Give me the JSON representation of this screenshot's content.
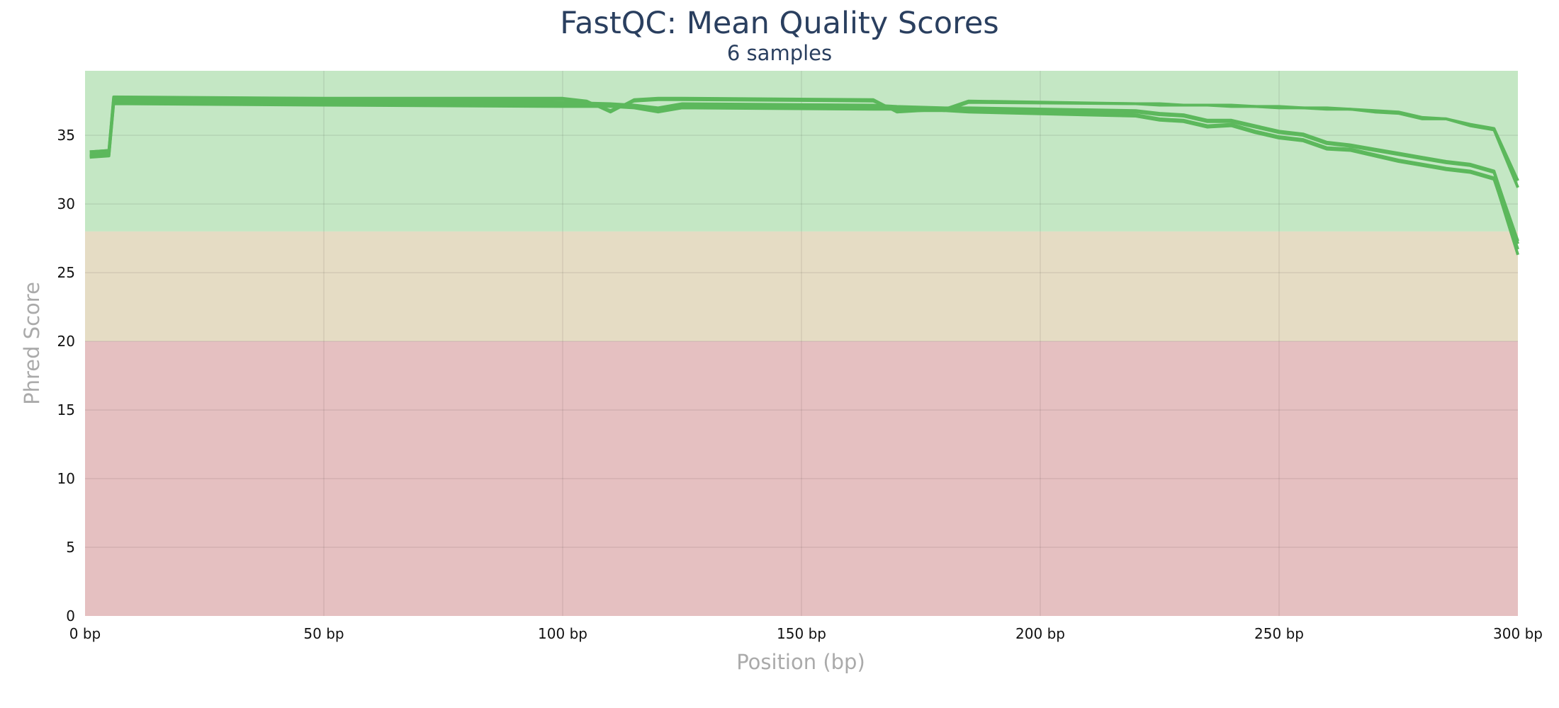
{
  "chart_data": {
    "type": "line",
    "title": "FastQC: Mean Quality Scores",
    "subtitle": "6 samples",
    "xlabel": "Position (bp)",
    "ylabel": "Phred Score",
    "xlim": [
      0,
      300
    ],
    "ylim": [
      0,
      39.7
    ],
    "x_ticks": [
      0,
      50,
      100,
      150,
      200,
      250,
      300
    ],
    "x_tick_labels": [
      "0 bp",
      "50 bp",
      "100 bp",
      "150 bp",
      "200 bp",
      "250 bp",
      "300 bp"
    ],
    "y_ticks": [
      0,
      5,
      10,
      15,
      20,
      25,
      30,
      35
    ],
    "y_tick_labels": [
      "0",
      "5",
      "10",
      "15",
      "20",
      "25",
      "30",
      "35"
    ],
    "grid": true,
    "legend": "none",
    "bands": [
      {
        "from": 28,
        "to": 39.7,
        "color": "#c4e7c4"
      },
      {
        "from": 20,
        "to": 28,
        "color": "#e5dcc4"
      },
      {
        "from": 0,
        "to": 20,
        "color": "#e5c0c1"
      }
    ],
    "line_color": "#5cb85c",
    "series": [
      {
        "x": [
          1,
          5,
          6,
          50,
          100,
          105,
          110,
          115,
          120,
          125,
          165,
          170,
          180,
          185,
          220,
          225,
          230,
          235,
          240,
          245,
          250,
          255,
          260,
          265,
          270,
          275,
          280,
          285,
          290,
          295,
          300
        ],
        "values": [
          33.8,
          33.9,
          37.8,
          37.7,
          37.7,
          37.5,
          36.7,
          37.6,
          37.7,
          37.7,
          37.6,
          36.7,
          36.9,
          37.5,
          37.3,
          37.3,
          37.2,
          37.2,
          37.2,
          37.1,
          37.1,
          37.0,
          37.0,
          36.9,
          36.8,
          36.7,
          36.3,
          36.2,
          35.8,
          35.5,
          31.7
        ]
      },
      {
        "x": [
          1,
          5,
          6,
          50,
          100,
          105,
          110,
          115,
          120,
          125,
          165,
          170,
          180,
          185,
          220,
          225,
          230,
          235,
          240,
          245,
          250,
          255,
          260,
          265,
          270,
          275,
          280,
          285,
          290,
          295,
          300
        ],
        "values": [
          33.8,
          33.9,
          37.7,
          37.6,
          37.6,
          37.4,
          36.8,
          37.5,
          37.6,
          37.6,
          37.5,
          36.8,
          36.8,
          37.4,
          37.3,
          37.2,
          37.2,
          37.2,
          37.1,
          37.1,
          37.0,
          37.0,
          36.9,
          36.9,
          36.7,
          36.6,
          36.2,
          36.2,
          35.7,
          35.4,
          31.2
        ]
      },
      {
        "x": [
          1,
          5,
          6,
          50,
          100,
          110,
          115,
          120,
          125,
          165,
          170,
          175,
          180,
          185,
          220,
          225,
          230,
          235,
          240,
          245,
          250,
          255,
          260,
          265,
          270,
          275,
          280,
          285,
          290,
          295,
          300
        ],
        "values": [
          33.5,
          33.6,
          37.4,
          37.3,
          37.2,
          37.2,
          37.1,
          36.8,
          37.1,
          37.0,
          37.0,
          37.0,
          36.9,
          36.8,
          36.5,
          36.2,
          36.1,
          35.7,
          35.8,
          35.3,
          34.9,
          34.7,
          34.1,
          34.0,
          33.6,
          33.2,
          32.9,
          32.6,
          32.4,
          31.9,
          26.3
        ]
      },
      {
        "x": [
          1,
          5,
          6,
          50,
          100,
          110,
          115,
          120,
          125,
          165,
          170,
          175,
          180,
          185,
          220,
          225,
          230,
          235,
          240,
          245,
          250,
          255,
          260,
          265,
          270,
          275,
          280,
          285,
          290,
          295,
          300
        ],
        "values": [
          33.4,
          33.5,
          37.3,
          37.2,
          37.1,
          37.1,
          37.0,
          36.7,
          37.0,
          36.9,
          36.9,
          36.9,
          36.8,
          36.7,
          36.4,
          36.1,
          36.0,
          35.6,
          35.7,
          35.2,
          34.8,
          34.6,
          34.0,
          33.9,
          33.5,
          33.1,
          32.8,
          32.5,
          32.3,
          31.8,
          26.7
        ]
      },
      {
        "x": [
          1,
          5,
          6,
          50,
          100,
          110,
          115,
          120,
          125,
          165,
          170,
          180,
          185,
          220,
          225,
          230,
          235,
          240,
          245,
          250,
          255,
          260,
          265,
          270,
          275,
          280,
          285,
          290,
          295,
          300
        ],
        "values": [
          33.6,
          33.7,
          37.6,
          37.5,
          37.4,
          37.3,
          37.2,
          37.0,
          37.3,
          37.2,
          37.1,
          37.0,
          37.0,
          36.8,
          36.6,
          36.5,
          36.1,
          36.1,
          35.7,
          35.3,
          35.1,
          34.5,
          34.3,
          34.0,
          33.7,
          33.4,
          33.1,
          32.9,
          32.4,
          27.1
        ]
      },
      {
        "x": [
          1,
          5,
          6,
          50,
          100,
          110,
          115,
          120,
          125,
          165,
          170,
          180,
          185,
          220,
          225,
          230,
          235,
          240,
          245,
          250,
          255,
          260,
          265,
          270,
          275,
          280,
          285,
          290,
          295,
          300
        ],
        "values": [
          33.5,
          33.6,
          37.5,
          37.4,
          37.3,
          37.2,
          37.1,
          36.9,
          37.2,
          37.1,
          37.0,
          36.9,
          36.9,
          36.7,
          36.5,
          36.4,
          36.0,
          36.0,
          35.6,
          35.2,
          35.0,
          34.4,
          34.2,
          33.9,
          33.6,
          33.3,
          33.0,
          32.8,
          32.3,
          27.3
        ]
      }
    ]
  }
}
